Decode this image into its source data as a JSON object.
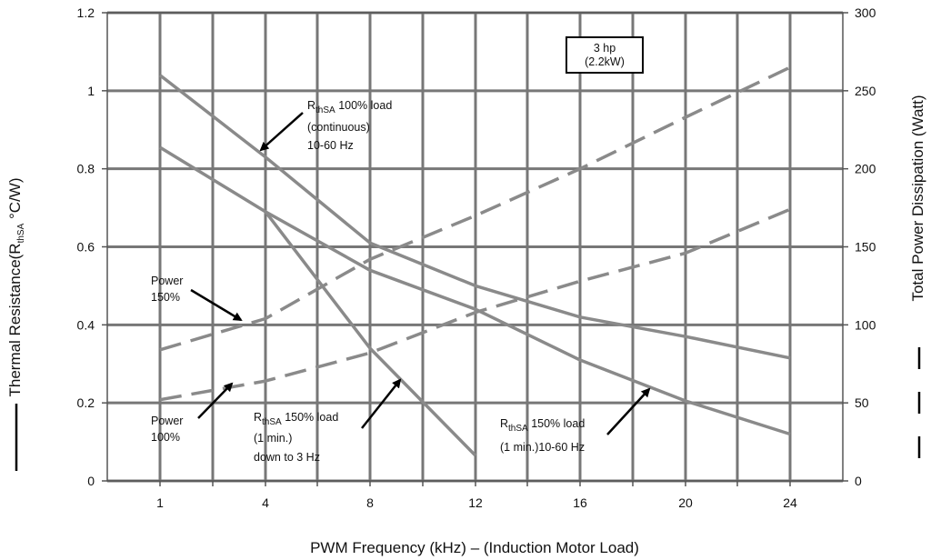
{
  "chart_data": {
    "type": "line",
    "x_axis": {
      "label": "PWM Frequency (kHz) – (Induction Motor Load)",
      "ticks": [
        "1",
        "4",
        "8",
        "12",
        "16",
        "20",
        "24"
      ]
    },
    "y_left": {
      "label_prefix": "Thermal Resistance(R",
      "label_sub": "thSA",
      "label_suffix": " °C/W)",
      "ticks": [
        "0",
        "0.2",
        "0.4",
        "0.6",
        "0.8",
        "1",
        "1.2"
      ],
      "ylim": [
        0,
        1.2
      ]
    },
    "y_right": {
      "label": "Total Power Dissipation (Watt)",
      "ticks": [
        "0",
        "50",
        "100",
        "150",
        "200",
        "250",
        "300"
      ],
      "ylim": [
        0,
        300
      ]
    },
    "box_label": [
      "3 hp",
      "(2.2kW)"
    ],
    "series": [
      {
        "axis": "left",
        "style": "solid",
        "color": "#8a8a8a",
        "x": [
          1,
          4,
          8,
          12,
          16,
          20,
          24
        ],
        "values": [
          1.04,
          0.83,
          0.61,
          0.5,
          0.42,
          0.37,
          0.315
        ]
      },
      {
        "axis": "left",
        "style": "solid",
        "color": "#8a8a8a",
        "x": [
          1,
          4,
          8,
          12,
          16,
          20,
          24
        ],
        "values": [
          0.855,
          0.69,
          0.54,
          0.44,
          0.31,
          0.205,
          0.12
        ]
      },
      {
        "axis": "left",
        "style": "solid",
        "color": "#8a8a8a",
        "x": [
          4,
          8,
          12
        ],
        "values": [
          0.69,
          0.34,
          0.065
        ]
      },
      {
        "axis": "right",
        "style": "dashed",
        "color": "#8a8a8a",
        "x": [
          1,
          4,
          8,
          12,
          16,
          20,
          24
        ],
        "values": [
          84,
          104,
          142,
          170,
          200,
          233,
          265
        ]
      },
      {
        "axis": "right",
        "style": "dashed",
        "color": "#8a8a8a",
        "x": [
          1,
          4,
          8,
          12,
          16,
          20,
          24
        ],
        "values": [
          52,
          64,
          82,
          108,
          128,
          146,
          174
        ]
      }
    ],
    "annotations": [
      {
        "main": "R",
        "sub": "thSA",
        "tail": " 100% load",
        "lines": [
          "(continuous)",
          "10-60 Hz"
        ]
      },
      {
        "main": "Power",
        "lines": [
          "150%"
        ]
      },
      {
        "main": "Power",
        "lines": [
          "100%"
        ]
      },
      {
        "main": "R",
        "sub": "thSA",
        "tail": " 150% load",
        "lines": [
          "(1 min.)",
          "down to 3 Hz"
        ]
      },
      {
        "main": "R",
        "sub": "thSA",
        "tail": " 150% load",
        "lines": [
          "(1 min.)10-60 Hz"
        ]
      }
    ],
    "grid": true
  }
}
